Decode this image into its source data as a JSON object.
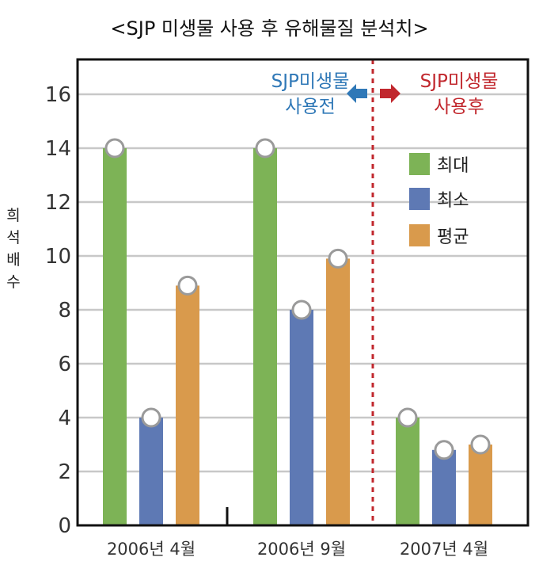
{
  "chart_data": {
    "type": "bar",
    "title": "<SJP 미생물 사용 후 유해물질 분석치>",
    "ylabel": "희석배수",
    "xlabel": "",
    "ylim": [
      0,
      18
    ],
    "yticks": [
      0,
      2,
      4,
      6,
      8,
      10,
      12,
      14,
      16
    ],
    "grid": true,
    "legend_position": "top-right",
    "categories": [
      "2006년 4월",
      "2006년 9월",
      "2007년 4월"
    ],
    "series": [
      {
        "name": "최대",
        "color": "#7db356",
        "values": [
          14,
          14,
          4
        ]
      },
      {
        "name": "최소",
        "color": "#5e79b4",
        "values": [
          4,
          8,
          2.8
        ]
      },
      {
        "name": "평균",
        "color": "#d99a4c",
        "values": [
          8.9,
          9.9,
          3
        ]
      }
    ],
    "annotations": {
      "before": {
        "lines": [
          "SJP미생물",
          "사용전"
        ],
        "color": "#2f78b7",
        "arrow_color": "#2f78b7"
      },
      "after": {
        "lines": [
          "SJP미생물",
          "사용후"
        ],
        "color": "#c1272d",
        "arrow_color": "#c1272d"
      }
    },
    "divider_color": "#c1272d"
  }
}
